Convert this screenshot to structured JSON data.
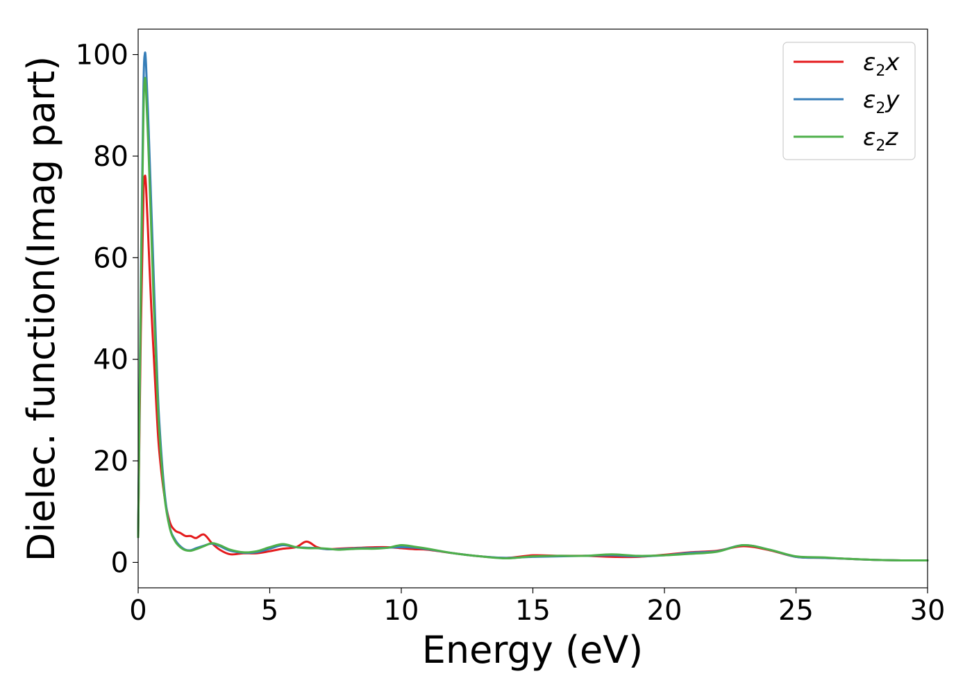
{
  "chart_data": {
    "type": "line",
    "xlabel": "Energy (eV)",
    "ylabel": "Dielec. function(Imag part)",
    "xlim": [
      0,
      30
    ],
    "ylim": [
      -5,
      105
    ],
    "xticks": [
      "0",
      "5",
      "10",
      "15",
      "20",
      "25",
      "30"
    ],
    "yticks": [
      "0",
      "20",
      "40",
      "60",
      "80",
      "100"
    ],
    "grid": false,
    "legend_position": "top-right",
    "series": [
      {
        "name": "ε2x",
        "legend": {
          "base": "ε",
          "sub": "2",
          "suffix": "x"
        },
        "color": "#e41a1c",
        "x": [
          0,
          0.1,
          0.2,
          0.25,
          0.3,
          0.4,
          0.5,
          0.6,
          0.7,
          0.8,
          1.0,
          1.2,
          1.4,
          1.6,
          1.8,
          2.0,
          2.2,
          2.5,
          2.8,
          3.1,
          3.5,
          4.0,
          4.5,
          5.0,
          5.5,
          6.0,
          6.4,
          6.8,
          7.2,
          7.6,
          8.0,
          8.5,
          9.0,
          9.5,
          10.0,
          10.5,
          11.0,
          12.0,
          13.0,
          14.0,
          15.0,
          16.0,
          17.0,
          18.0,
          19.0,
          20.0,
          21.0,
          22.0,
          23.0,
          24.0,
          25.0,
          26.0,
          27.0,
          28.0,
          29.0,
          30.0
        ],
        "y": [
          5,
          45,
          72,
          76,
          74,
          62,
          50,
          40,
          30,
          22,
          13,
          8,
          6.3,
          5.8,
          5.2,
          5.2,
          4.8,
          5.5,
          3.8,
          2.5,
          1.6,
          1.8,
          1.8,
          2.2,
          2.7,
          3.0,
          4.1,
          3.0,
          2.6,
          2.7,
          2.8,
          2.9,
          3.0,
          3.0,
          2.8,
          2.6,
          2.5,
          1.8,
          1.2,
          0.9,
          1.4,
          1.3,
          1.3,
          1.1,
          1.1,
          1.5,
          2.0,
          2.3,
          3.2,
          2.4,
          1.1,
          0.9,
          0.7,
          0.5,
          0.4,
          0.4
        ]
      },
      {
        "name": "ε2y",
        "legend": {
          "base": "ε",
          "sub": "2",
          "suffix": "y"
        },
        "color": "#377eb8",
        "x": [
          0,
          0.1,
          0.2,
          0.25,
          0.3,
          0.4,
          0.5,
          0.6,
          0.7,
          0.8,
          1.0,
          1.2,
          1.4,
          1.6,
          1.8,
          2.0,
          2.2,
          2.5,
          2.8,
          3.1,
          3.5,
          4.0,
          4.5,
          5.0,
          5.5,
          6.0,
          6.4,
          6.8,
          7.2,
          7.6,
          8.0,
          8.5,
          9.0,
          9.5,
          10.0,
          10.5,
          11.0,
          12.0,
          13.0,
          14.0,
          15.0,
          16.0,
          17.0,
          18.0,
          19.0,
          20.0,
          21.0,
          22.0,
          23.0,
          24.0,
          25.0,
          26.0,
          27.0,
          28.0,
          29.0,
          30.0
        ],
        "y": [
          5,
          55,
          93,
          100,
          98,
          85,
          70,
          55,
          40,
          28,
          14,
          7,
          4.5,
          3.2,
          2.5,
          2.4,
          2.8,
          3.3,
          3.7,
          3.2,
          2.3,
          1.9,
          2.0,
          2.7,
          3.4,
          3.0,
          2.9,
          2.8,
          2.6,
          2.6,
          2.7,
          2.8,
          2.8,
          2.9,
          3.0,
          2.9,
          2.6,
          1.8,
          1.2,
          0.9,
          1.1,
          1.2,
          1.3,
          1.4,
          1.2,
          1.4,
          1.9,
          2.2,
          3.4,
          2.5,
          1.1,
          0.9,
          0.7,
          0.5,
          0.4,
          0.4
        ]
      },
      {
        "name": "ε2z",
        "legend": {
          "base": "ε",
          "sub": "2",
          "suffix": "z"
        },
        "color": "#4daf4a",
        "x": [
          0,
          0.1,
          0.2,
          0.25,
          0.3,
          0.4,
          0.5,
          0.6,
          0.7,
          0.8,
          1.0,
          1.2,
          1.4,
          1.6,
          1.8,
          2.0,
          2.2,
          2.5,
          2.8,
          3.1,
          3.5,
          4.0,
          4.5,
          5.0,
          5.5,
          6.0,
          6.4,
          6.8,
          7.2,
          7.6,
          8.0,
          8.5,
          9.0,
          9.5,
          10.0,
          10.5,
          11.0,
          12.0,
          13.0,
          14.0,
          15.0,
          16.0,
          17.0,
          18.0,
          19.0,
          20.0,
          21.0,
          22.0,
          23.0,
          24.0,
          25.0,
          26.0,
          27.0,
          28.0,
          29.0,
          30.0
        ],
        "y": [
          5,
          52,
          88,
          95,
          93,
          80,
          65,
          50,
          37,
          26,
          13,
          6.8,
          4.2,
          3.0,
          2.4,
          2.3,
          2.6,
          3.2,
          3.8,
          3.4,
          2.5,
          2.0,
          2.2,
          3.0,
          3.6,
          3.0,
          2.8,
          2.8,
          2.7,
          2.5,
          2.6,
          2.7,
          2.7,
          2.9,
          3.4,
          3.1,
          2.7,
          1.8,
          1.2,
          0.8,
          1.2,
          1.3,
          1.3,
          1.6,
          1.3,
          1.4,
          1.7,
          2.1,
          3.4,
          2.5,
          1.2,
          1.0,
          0.7,
          0.5,
          0.4,
          0.4
        ]
      }
    ]
  }
}
